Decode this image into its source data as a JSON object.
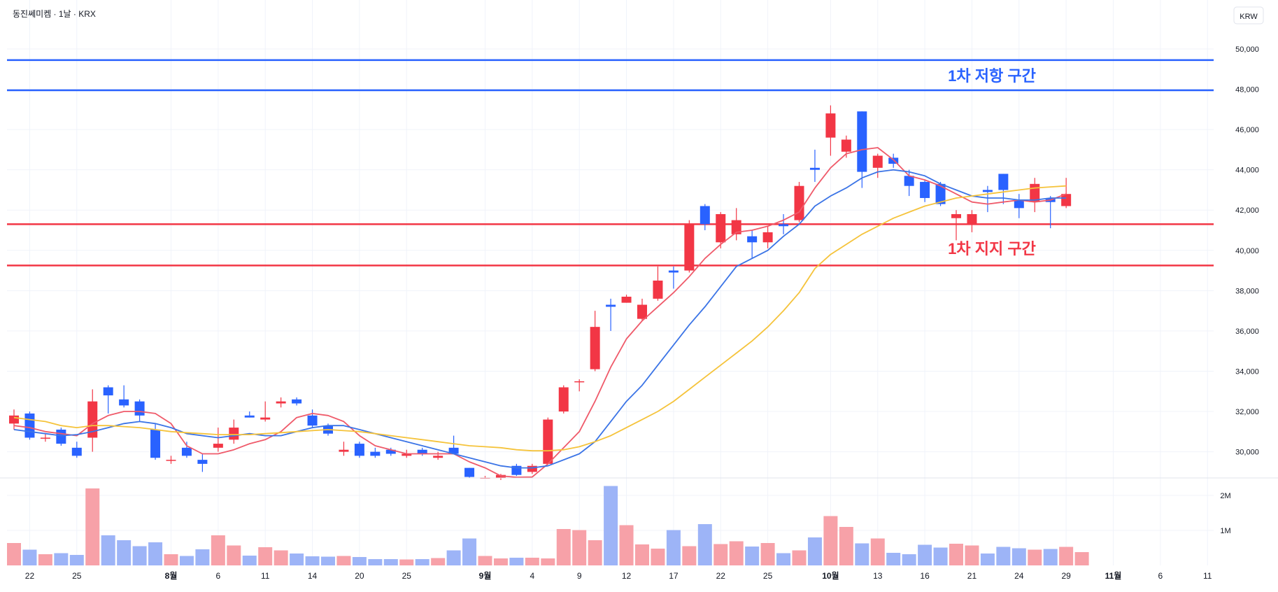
{
  "header": {
    "title": "동진쎄미켐 · 1날 · KRX",
    "currency": "KRW"
  },
  "annotations": {
    "resistance_label": "1차 저항 구간",
    "support_label": "1차 지지 구간"
  },
  "colors": {
    "up": "#f23645",
    "down": "#2962ff",
    "vol_up": "#f7a1a8",
    "vol_down": "#9db4f7",
    "ma5": "#ef5a6a",
    "ma10": "#3b74e6",
    "ma20": "#f5c33b",
    "resistance": "#2962ff",
    "support": "#f23645"
  },
  "chart_data": {
    "type": "candlestick",
    "title": "동진쎄미켐 · 1날 · KRX",
    "y_axis": {
      "ticks": [
        "50,000",
        "48,000",
        "46,000",
        "44,000",
        "42,000",
        "40,000",
        "38,000",
        "36,000",
        "34,000",
        "32,000",
        "30,000"
      ],
      "range": [
        28700,
        51000
      ]
    },
    "volume_axis": {
      "ticks": [
        "2M",
        "1M"
      ]
    },
    "x_axis": {
      "labels": [
        {
          "text": "22",
          "index": 1,
          "bold": false
        },
        {
          "text": "25",
          "index": 4,
          "bold": false
        },
        {
          "text": "8월",
          "index": 10,
          "bold": true
        },
        {
          "text": "6",
          "index": 13,
          "bold": false
        },
        {
          "text": "11",
          "index": 16,
          "bold": false
        },
        {
          "text": "14",
          "index": 19,
          "bold": false
        },
        {
          "text": "20",
          "index": 22,
          "bold": false
        },
        {
          "text": "25",
          "index": 25,
          "bold": false
        },
        {
          "text": "9월",
          "index": 30,
          "bold": true
        },
        {
          "text": "4",
          "index": 33,
          "bold": false
        },
        {
          "text": "9",
          "index": 36,
          "bold": false
        },
        {
          "text": "12",
          "index": 39,
          "bold": false
        },
        {
          "text": "17",
          "index": 42,
          "bold": false
        },
        {
          "text": "22",
          "index": 45,
          "bold": false
        },
        {
          "text": "25",
          "index": 48,
          "bold": false
        },
        {
          "text": "10월",
          "index": 52,
          "bold": true
        },
        {
          "text": "13",
          "index": 55,
          "bold": false
        },
        {
          "text": "16",
          "index": 58,
          "bold": false
        },
        {
          "text": "21",
          "index": 61,
          "bold": false
        },
        {
          "text": "24",
          "index": 64,
          "bold": false
        },
        {
          "text": "29",
          "index": 67,
          "bold": false
        },
        {
          "text": "11월",
          "index": 70,
          "bold": true
        },
        {
          "text": "6",
          "index": 73,
          "bold": false
        },
        {
          "text": "11",
          "index": 76,
          "bold": false
        }
      ]
    },
    "levels": [
      {
        "kind": "resistance",
        "value": 49450
      },
      {
        "kind": "resistance",
        "value": 47950
      },
      {
        "kind": "support",
        "value": 41300
      },
      {
        "kind": "support",
        "value": 39250
      }
    ],
    "candles": [
      {
        "o": 31400,
        "h": 32100,
        "l": 31100,
        "c": 31800
      },
      {
        "o": 31900,
        "h": 32000,
        "l": 30600,
        "c": 30700
      },
      {
        "o": 30700,
        "h": 30900,
        "l": 30500,
        "c": 30700
      },
      {
        "o": 31100,
        "h": 31200,
        "l": 30300,
        "c": 30400
      },
      {
        "o": 30200,
        "h": 30500,
        "l": 29700,
        "c": 29800
      },
      {
        "o": 30700,
        "h": 33100,
        "l": 30000,
        "c": 32500
      },
      {
        "o": 33200,
        "h": 33300,
        "l": 31900,
        "c": 32800
      },
      {
        "o": 32600,
        "h": 33300,
        "l": 32200,
        "c": 32300
      },
      {
        "o": 32500,
        "h": 32600,
        "l": 31500,
        "c": 31800
      },
      {
        "o": 31100,
        "h": 31400,
        "l": 29600,
        "c": 29700
      },
      {
        "o": 29600,
        "h": 29800,
        "l": 29400,
        "c": 29600
      },
      {
        "o": 30200,
        "h": 30500,
        "l": 29700,
        "c": 29800
      },
      {
        "o": 29600,
        "h": 29900,
        "l": 29000,
        "c": 29400
      },
      {
        "o": 30200,
        "h": 31200,
        "l": 30000,
        "c": 30400
      },
      {
        "o": 30600,
        "h": 31600,
        "l": 30400,
        "c": 31200
      },
      {
        "o": 31800,
        "h": 32000,
        "l": 31700,
        "c": 31700
      },
      {
        "o": 31600,
        "h": 32500,
        "l": 31500,
        "c": 31700
      },
      {
        "o": 32400,
        "h": 32700,
        "l": 32200,
        "c": 32500
      },
      {
        "o": 32600,
        "h": 32700,
        "l": 32300,
        "c": 32400
      },
      {
        "o": 31800,
        "h": 32100,
        "l": 31200,
        "c": 31300
      },
      {
        "o": 31300,
        "h": 31400,
        "l": 30800,
        "c": 30900
      },
      {
        "o": 30000,
        "h": 30500,
        "l": 29800,
        "c": 30100
      },
      {
        "o": 30400,
        "h": 30500,
        "l": 29700,
        "c": 29800
      },
      {
        "o": 30000,
        "h": 30200,
        "l": 29700,
        "c": 29800
      },
      {
        "o": 30100,
        "h": 30200,
        "l": 29800,
        "c": 29900
      },
      {
        "o": 29800,
        "h": 30100,
        "l": 29700,
        "c": 29900
      },
      {
        "o": 30100,
        "h": 30200,
        "l": 29800,
        "c": 29900
      },
      {
        "o": 29700,
        "h": 30000,
        "l": 29600,
        "c": 29800
      },
      {
        "o": 30200,
        "h": 30800,
        "l": 29900,
        "c": 29900
      },
      {
        "o": 29200,
        "h": 29200,
        "l": 28700,
        "c": 28750
      },
      {
        "o": 28700,
        "h": 28800,
        "l": 28700,
        "c": 28720
      },
      {
        "o": 28700,
        "h": 28900,
        "l": 28600,
        "c": 28850
      },
      {
        "o": 29300,
        "h": 29400,
        "l": 28800,
        "c": 28850
      },
      {
        "o": 29000,
        "h": 29400,
        "l": 28900,
        "c": 29300
      },
      {
        "o": 29400,
        "h": 31700,
        "l": 29400,
        "c": 31600
      },
      {
        "o": 32000,
        "h": 33300,
        "l": 31900,
        "c": 33200
      },
      {
        "o": 33500,
        "h": 33600,
        "l": 33000,
        "c": 33500
      },
      {
        "o": 34100,
        "h": 37000,
        "l": 34000,
        "c": 36200
      },
      {
        "o": 37300,
        "h": 37600,
        "l": 36000,
        "c": 37200
      },
      {
        "o": 37400,
        "h": 37800,
        "l": 37400,
        "c": 37700
      },
      {
        "o": 36600,
        "h": 37600,
        "l": 36500,
        "c": 37300
      },
      {
        "o": 37600,
        "h": 39200,
        "l": 37500,
        "c": 38500
      },
      {
        "o": 39000,
        "h": 39200,
        "l": 38100,
        "c": 38900
      },
      {
        "o": 39000,
        "h": 41500,
        "l": 38900,
        "c": 41300
      },
      {
        "o": 42200,
        "h": 42300,
        "l": 41000,
        "c": 41300
      },
      {
        "o": 40400,
        "h": 41900,
        "l": 40100,
        "c": 41800
      },
      {
        "o": 40800,
        "h": 42100,
        "l": 40500,
        "c": 41500
      },
      {
        "o": 40700,
        "h": 41000,
        "l": 39600,
        "c": 40400
      },
      {
        "o": 40400,
        "h": 41200,
        "l": 40100,
        "c": 40900
      },
      {
        "o": 41300,
        "h": 41800,
        "l": 40800,
        "c": 41200
      },
      {
        "o": 41500,
        "h": 43400,
        "l": 41400,
        "c": 43200
      },
      {
        "o": 44100,
        "h": 45000,
        "l": 43400,
        "c": 44000
      },
      {
        "o": 45600,
        "h": 47200,
        "l": 44700,
        "c": 46800
      },
      {
        "o": 44900,
        "h": 45700,
        "l": 44600,
        "c": 45500
      },
      {
        "o": 46900,
        "h": 46900,
        "l": 43100,
        "c": 43900
      },
      {
        "o": 44100,
        "h": 44800,
        "l": 43600,
        "c": 44700
      },
      {
        "o": 44600,
        "h": 44800,
        "l": 44100,
        "c": 44300
      },
      {
        "o": 43700,
        "h": 44000,
        "l": 42700,
        "c": 43200
      },
      {
        "o": 43400,
        "h": 43500,
        "l": 42400,
        "c": 42600
      },
      {
        "o": 43300,
        "h": 43400,
        "l": 42200,
        "c": 42300
      },
      {
        "o": 41600,
        "h": 42000,
        "l": 40500,
        "c": 41800
      },
      {
        "o": 41300,
        "h": 42000,
        "l": 40900,
        "c": 41800
      },
      {
        "o": 43000,
        "h": 43200,
        "l": 41900,
        "c": 42900
      },
      {
        "o": 43800,
        "h": 43800,
        "l": 42300,
        "c": 43000
      },
      {
        "o": 42500,
        "h": 42800,
        "l": 41600,
        "c": 42100
      },
      {
        "o": 42400,
        "h": 43600,
        "l": 41900,
        "c": 43300
      },
      {
        "o": 42600,
        "h": 42700,
        "l": 41100,
        "c": 42400
      },
      {
        "o": 42200,
        "h": 43600,
        "l": 42100,
        "c": 42800
      }
    ],
    "volume": [
      0.64,
      0.45,
      0.32,
      0.35,
      0.3,
      2.2,
      0.86,
      0.72,
      0.55,
      0.66,
      0.32,
      0.27,
      0.46,
      0.86,
      0.57,
      0.28,
      0.52,
      0.43,
      0.34,
      0.26,
      0.25,
      0.27,
      0.24,
      0.18,
      0.18,
      0.17,
      0.18,
      0.21,
      0.43,
      0.77,
      0.27,
      0.2,
      0.22,
      0.22,
      0.2,
      1.04,
      1.01,
      0.72,
      2.27,
      1.15,
      0.6,
      0.48,
      1.01,
      0.55,
      1.18,
      0.61,
      0.69,
      0.54,
      0.64,
      0.35,
      0.43,
      0.8,
      1.41,
      1.1,
      0.63,
      0.77,
      0.36,
      0.32,
      0.59,
      0.51,
      0.62,
      0.57,
      0.34,
      0.53,
      0.49,
      0.45,
      0.47,
      0.53,
      0.38
    ],
    "series": [
      {
        "name": "",
        "color": "#ef5a6a",
        "values": [
          31300,
          31200,
          31000,
          30900,
          30800,
          31400,
          31800,
          32000,
          32000,
          31900,
          31400,
          30300,
          29900,
          29900,
          30100,
          30400,
          30600,
          31000,
          31700,
          31900,
          31800,
          31500,
          30800,
          30300,
          30100,
          29900,
          29900,
          29900,
          29900,
          29500,
          29200,
          28800,
          28700,
          28750,
          29400,
          30200,
          31000,
          32500,
          34200,
          35600,
          36500,
          37200,
          37900,
          38700,
          39600,
          40300,
          40900,
          41000,
          41200,
          41500,
          41900,
          43100,
          44100,
          44800,
          45000,
          45100,
          44500,
          43700,
          43500,
          43200,
          42800,
          42400,
          42300,
          42400,
          42500,
          42400,
          42500,
          42800
        ]
      },
      {
        "name": "",
        "color": "#3b74e6",
        "values": [
          31100,
          31000,
          30900,
          30800,
          30850,
          31000,
          31200,
          31400,
          31500,
          31400,
          31200,
          30900,
          30800,
          30700,
          30800,
          30900,
          30800,
          30800,
          31000,
          31200,
          31300,
          31300,
          31100,
          30900,
          30700,
          30500,
          30300,
          30100,
          29900,
          29700,
          29500,
          29300,
          29200,
          29200,
          29300,
          29600,
          29900,
          30500,
          31500,
          32500,
          33300,
          34300,
          35300,
          36300,
          37200,
          38200,
          39200,
          39600,
          40000,
          40700,
          41300,
          42200,
          42700,
          43100,
          43600,
          43900,
          44000,
          43900,
          43700,
          43300,
          43000,
          42700,
          42600,
          42600,
          42500,
          42500,
          42600,
          42600
        ]
      },
      {
        "name": "",
        "color": "#f5c33b",
        "values": [
          31700,
          31600,
          31500,
          31300,
          31200,
          31300,
          31300,
          31250,
          31200,
          31100,
          31000,
          30950,
          30900,
          30850,
          30850,
          30850,
          30900,
          30950,
          31000,
          31050,
          31100,
          31050,
          31000,
          30900,
          30800,
          30700,
          30600,
          30500,
          30400,
          30300,
          30250,
          30200,
          30100,
          30050,
          30050,
          30100,
          30250,
          30500,
          30800,
          31200,
          31600,
          32000,
          32500,
          33100,
          33700,
          34300,
          34900,
          35500,
          36200,
          37000,
          37900,
          39100,
          39800,
          40300,
          40800,
          41200,
          41600,
          41900,
          42200,
          42400,
          42600,
          42700,
          42800,
          42900,
          43000,
          43100,
          43150,
          43200
        ]
      }
    ]
  }
}
